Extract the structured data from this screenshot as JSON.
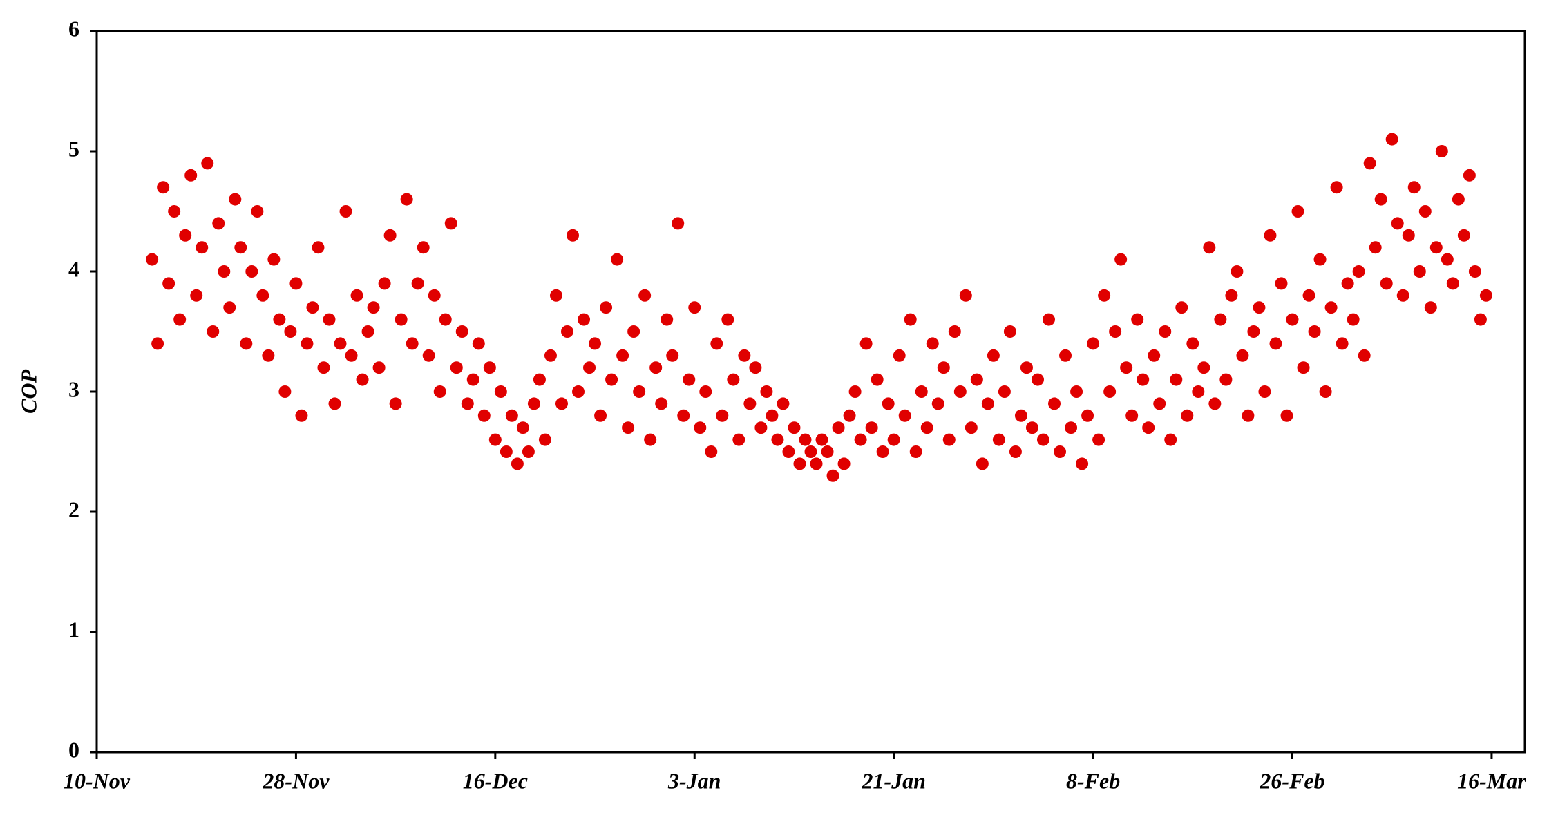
{
  "chart_data": {
    "type": "scatter",
    "y_label": "COP",
    "color": "#e00000",
    "xlim": [
      0,
      129
    ],
    "ylim": [
      0,
      6
    ],
    "xticks": [
      {
        "value": 0,
        "label": "10-Nov"
      },
      {
        "value": 18,
        "label": "28-Nov"
      },
      {
        "value": 36,
        "label": "16-Dec"
      },
      {
        "value": 54,
        "label": "3-Jan"
      },
      {
        "value": 72,
        "label": "21-Jan"
      },
      {
        "value": 90,
        "label": "8-Feb"
      },
      {
        "value": 108,
        "label": "26-Feb"
      },
      {
        "value": 126,
        "label": "16-Mar"
      }
    ],
    "yticks": [
      0,
      1,
      2,
      3,
      4,
      5,
      6
    ],
    "x": [
      5,
      5.5,
      6,
      6.5,
      7,
      7.5,
      8,
      8.5,
      9,
      9.5,
      10,
      10.5,
      11,
      11.5,
      12,
      12.5,
      13,
      13.5,
      14,
      14.5,
      15,
      15.5,
      16,
      16.5,
      17,
      17.5,
      18,
      18.5,
      19,
      19.5,
      20,
      20.5,
      21,
      21.5,
      22,
      22.5,
      23,
      23.5,
      24,
      24.5,
      25,
      25.5,
      26,
      26.5,
      27,
      27.5,
      28,
      28.5,
      29,
      29.5,
      30,
      30.5,
      31,
      31.5,
      32,
      32.5,
      33,
      33.5,
      34,
      34.5,
      35,
      35.5,
      36,
      36.5,
      37,
      37.5,
      38,
      38.5,
      39,
      39.5,
      40,
      40.5,
      41,
      41.5,
      42,
      42.5,
      43,
      43.5,
      44,
      44.5,
      45,
      45.5,
      46,
      46.5,
      47,
      47.5,
      48,
      48.5,
      49,
      49.5,
      50,
      50.5,
      51,
      51.5,
      52,
      52.5,
      53,
      53.5,
      54,
      54.5,
      55,
      55.5,
      56,
      56.5,
      57,
      57.5,
      58,
      58.5,
      59,
      59.5,
      60,
      60.5,
      61,
      61.5,
      62,
      62.5,
      63,
      63.5,
      64,
      64.5,
      65,
      65.5,
      66,
      66.5,
      67,
      67.5,
      68,
      68.5,
      69,
      69.5,
      70,
      70.5,
      71,
      71.5,
      72,
      72.5,
      73,
      73.5,
      74,
      74.5,
      75,
      75.5,
      76,
      76.5,
      77,
      77.5,
      78,
      78.5,
      79,
      79.5,
      80,
      80.5,
      81,
      81.5,
      82,
      82.5,
      83,
      83.5,
      84,
      84.5,
      85,
      85.5,
      86,
      86.5,
      87,
      87.5,
      88,
      88.5,
      89,
      89.5,
      90,
      90.5,
      91,
      91.5,
      92,
      92.5,
      93,
      93.5,
      94,
      94.5,
      95,
      95.5,
      96,
      96.5,
      97,
      97.5,
      98,
      98.5,
      99,
      99.5,
      100,
      100.5,
      101,
      101.5,
      102,
      102.5,
      103,
      103.5,
      104,
      104.5,
      105,
      105.5,
      106,
      106.5,
      107,
      107.5,
      108,
      108.5,
      109,
      109.5,
      110,
      110.5,
      111,
      111.5,
      112,
      112.5,
      113,
      113.5,
      114,
      114.5,
      115,
      115.5,
      116,
      116.5,
      117,
      117.5,
      118,
      118.5,
      119,
      119.5,
      120,
      120.5,
      121,
      121.5,
      122,
      122.5,
      123,
      123.5,
      124,
      124.5,
      125,
      125.5
    ],
    "values": [
      4.1,
      3.4,
      4.7,
      3.9,
      4.5,
      3.6,
      4.3,
      4.8,
      3.8,
      4.2,
      4.9,
      3.5,
      4.4,
      4.0,
      3.7,
      4.6,
      4.2,
      3.4,
      4.0,
      4.5,
      3.8,
      3.3,
      4.1,
      3.6,
      3.0,
      3.5,
      3.9,
      2.8,
      3.4,
      3.7,
      4.2,
      3.2,
      3.6,
      2.9,
      3.4,
      4.5,
      3.3,
      3.8,
      3.1,
      3.5,
      3.7,
      3.2,
      3.9,
      4.3,
      2.9,
      3.6,
      4.6,
      3.4,
      3.9,
      4.2,
      3.3,
      3.8,
      3.0,
      3.6,
      4.4,
      3.2,
      3.5,
      2.9,
      3.1,
      3.4,
      2.8,
      3.2,
      2.6,
      3.0,
      2.5,
      2.8,
      2.4,
      2.7,
      2.5,
      2.9,
      3.1,
      2.6,
      3.3,
      3.8,
      2.9,
      3.5,
      4.3,
      3.0,
      3.6,
      3.2,
      3.4,
      2.8,
      3.7,
      3.1,
      4.1,
      3.3,
      2.7,
      3.5,
      3.0,
      3.8,
      2.6,
      3.2,
      2.9,
      3.6,
      3.3,
      4.4,
      2.8,
      3.1,
      3.7,
      2.7,
      3.0,
      2.5,
      3.4,
      2.8,
      3.6,
      3.1,
      2.6,
      3.3,
      2.9,
      3.2,
      2.7,
      3.0,
      2.8,
      2.6,
      2.9,
      2.5,
      2.7,
      2.4,
      2.6,
      2.5,
      2.4,
      2.6,
      2.5,
      2.3,
      2.7,
      2.4,
      2.8,
      3.0,
      2.6,
      3.4,
      2.7,
      3.1,
      2.5,
      2.9,
      2.6,
      3.3,
      2.8,
      3.6,
      2.5,
      3.0,
      2.7,
      3.4,
      2.9,
      3.2,
      2.6,
      3.5,
      3.0,
      3.8,
      2.7,
      3.1,
      2.4,
      2.9,
      3.3,
      2.6,
      3.0,
      3.5,
      2.5,
      2.8,
      3.2,
      2.7,
      3.1,
      2.6,
      3.6,
      2.9,
      2.5,
      3.3,
      2.7,
      3.0,
      2.4,
      2.8,
      3.4,
      2.6,
      3.8,
      3.0,
      3.5,
      4.1,
      3.2,
      2.8,
      3.6,
      3.1,
      2.7,
      3.3,
      2.9,
      3.5,
      2.6,
      3.1,
      3.7,
      2.8,
      3.4,
      3.0,
      3.2,
      4.2,
      2.9,
      3.6,
      3.1,
      3.8,
      4.0,
      3.3,
      2.8,
      3.5,
      3.7,
      3.0,
      4.3,
      3.4,
      3.9,
      2.8,
      3.6,
      4.5,
      3.2,
      3.8,
      3.5,
      4.1,
      3.0,
      3.7,
      4.7,
      3.4,
      3.9,
      3.6,
      4.0,
      3.3,
      4.9,
      4.2,
      4.6,
      3.9,
      5.1,
      4.4,
      3.8,
      4.3,
      4.7,
      4.0,
      4.5,
      3.7,
      4.2,
      5.0,
      4.1,
      3.9,
      4.6,
      4.3,
      4.8,
      4.0,
      3.6,
      3.8
    ]
  }
}
